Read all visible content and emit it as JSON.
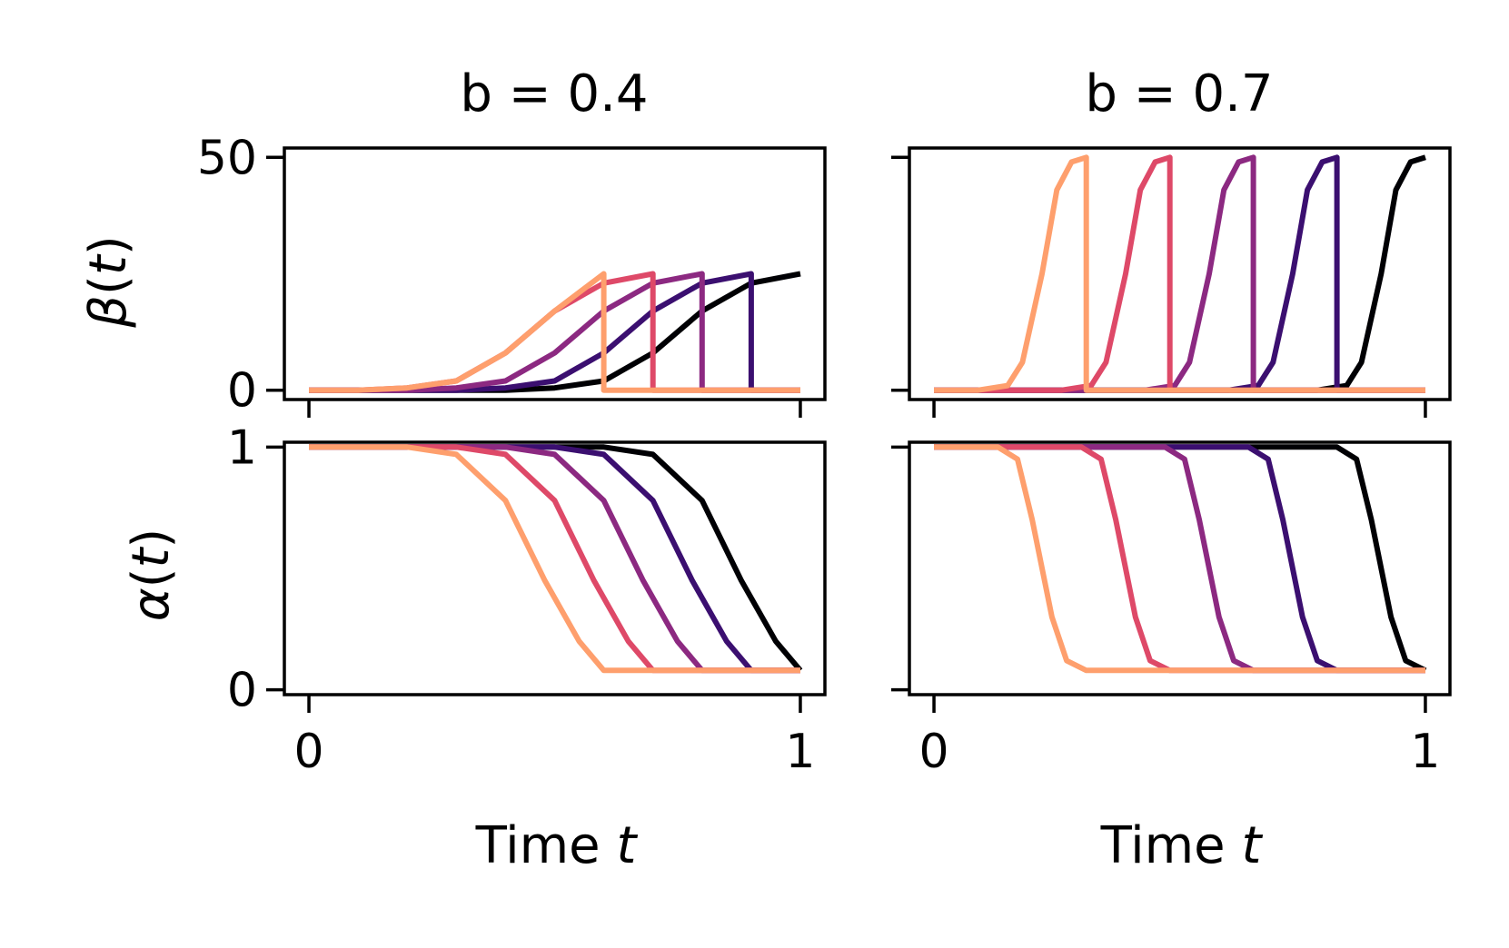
{
  "figure": {
    "column_titles": [
      "b = 0.4",
      "b = 0.7"
    ],
    "row_labels": {
      "beta": {
        "symbol": "β",
        "arg": "t",
        "text": "β(t)"
      },
      "alpha": {
        "symbol": "α",
        "arg": "t",
        "text": "α(t)"
      }
    },
    "xlabel": {
      "prefix": "Time ",
      "var": "t"
    }
  },
  "colors": [
    "#000004",
    "#3b0f70",
    "#8c2981",
    "#de4968",
    "#fe9f6d"
  ],
  "chart_data": [
    {
      "id": "beta-b04",
      "type": "line",
      "ylabel": "β(t)",
      "title": "b = 0.4",
      "ylim": [
        -2,
        52
      ],
      "xlim": [
        -0.05,
        1.05
      ],
      "yticks": [
        0,
        50
      ],
      "xticks": [
        0,
        1
      ],
      "ytick_labels": [
        "0",
        "50"
      ],
      "xtick_labels": [],
      "grid": false,
      "series": [
        {
          "x": [
            0,
            0.4,
            0.5,
            0.6,
            0.7,
            0.8,
            0.9,
            1.0
          ],
          "y": [
            0,
            0,
            0.5,
            2,
            8,
            17,
            23,
            25
          ]
        },
        {
          "x": [
            0,
            0.3,
            0.4,
            0.5,
            0.6,
            0.7,
            0.8,
            0.9,
            0.9,
            1.0
          ],
          "y": [
            0,
            0,
            0.5,
            2,
            8,
            17,
            23,
            25,
            0,
            0
          ]
        },
        {
          "x": [
            0,
            0.2,
            0.3,
            0.4,
            0.5,
            0.6,
            0.7,
            0.8,
            0.8,
            1.0
          ],
          "y": [
            0,
            0,
            0.5,
            2,
            8,
            17,
            23,
            25,
            0,
            0
          ]
        },
        {
          "x": [
            0,
            0.1,
            0.2,
            0.3,
            0.4,
            0.5,
            0.6,
            0.7,
            0.7,
            1.0
          ],
          "y": [
            0,
            0,
            0.5,
            2,
            8,
            17,
            23,
            25,
            0,
            0
          ]
        },
        {
          "x": [
            0,
            0.1,
            0.2,
            0.3,
            0.4,
            0.5,
            0.6,
            0.6,
            1.0
          ],
          "y": [
            0,
            0,
            0.5,
            2,
            8,
            17,
            25,
            0,
            0
          ]
        }
      ]
    },
    {
      "id": "beta-b07",
      "type": "line",
      "ylabel": "",
      "title": "b = 0.7",
      "ylim": [
        -2,
        52
      ],
      "xlim": [
        -0.05,
        1.05
      ],
      "yticks": [
        0,
        50
      ],
      "xticks": [
        0,
        1
      ],
      "ytick_labels": [],
      "xtick_labels": [],
      "grid": false,
      "series": [
        {
          "x": [
            0,
            0.78,
            0.84,
            0.87,
            0.91,
            0.94,
            0.97,
            1.0
          ],
          "y": [
            0,
            0,
            1,
            6,
            25,
            43,
            49,
            50
          ]
        },
        {
          "x": [
            0,
            0.6,
            0.66,
            0.69,
            0.73,
            0.76,
            0.79,
            0.82,
            0.82,
            1.0
          ],
          "y": [
            0,
            0,
            1,
            6,
            25,
            43,
            49,
            50,
            0,
            0
          ]
        },
        {
          "x": [
            0,
            0.43,
            0.49,
            0.52,
            0.56,
            0.59,
            0.62,
            0.65,
            0.65,
            1.0
          ],
          "y": [
            0,
            0,
            1,
            6,
            25,
            43,
            49,
            50,
            0,
            0
          ]
        },
        {
          "x": [
            0,
            0.26,
            0.32,
            0.35,
            0.39,
            0.42,
            0.45,
            0.48,
            0.48,
            1.0
          ],
          "y": [
            0,
            0,
            1,
            6,
            25,
            43,
            49,
            50,
            0,
            0
          ]
        },
        {
          "x": [
            0,
            0.09,
            0.15,
            0.18,
            0.22,
            0.25,
            0.28,
            0.31,
            0.31,
            1.0
          ],
          "y": [
            0,
            0,
            1,
            6,
            25,
            43,
            49,
            50,
            0,
            0
          ]
        }
      ]
    },
    {
      "id": "alpha-b04",
      "type": "line",
      "ylabel": "α(t)",
      "title": "",
      "ylim": [
        -0.02,
        1.02
      ],
      "xlim": [
        -0.05,
        1.05
      ],
      "yticks": [
        0,
        1
      ],
      "xticks": [
        0,
        1
      ],
      "ytick_labels": [
        "0",
        "1"
      ],
      "xtick_labels": [
        "0",
        "1"
      ],
      "grid": false,
      "series": [
        {
          "x": [
            0,
            0.6,
            0.7,
            0.8,
            0.88,
            0.95,
            1.0
          ],
          "y": [
            1,
            1,
            0.97,
            0.78,
            0.45,
            0.2,
            0.08
          ]
        },
        {
          "x": [
            0,
            0.5,
            0.6,
            0.7,
            0.78,
            0.85,
            0.9,
            1.0
          ],
          "y": [
            1,
            1,
            0.97,
            0.78,
            0.45,
            0.2,
            0.08,
            0.08
          ]
        },
        {
          "x": [
            0,
            0.4,
            0.5,
            0.6,
            0.68,
            0.75,
            0.8,
            1.0
          ],
          "y": [
            1,
            1,
            0.97,
            0.78,
            0.45,
            0.2,
            0.08,
            0.08
          ]
        },
        {
          "x": [
            0,
            0.3,
            0.4,
            0.5,
            0.58,
            0.65,
            0.7,
            1.0
          ],
          "y": [
            1,
            1,
            0.97,
            0.78,
            0.45,
            0.2,
            0.08,
            0.08
          ]
        },
        {
          "x": [
            0,
            0.2,
            0.3,
            0.4,
            0.48,
            0.55,
            0.6,
            1.0
          ],
          "y": [
            1,
            1,
            0.97,
            0.78,
            0.45,
            0.2,
            0.08,
            0.08
          ]
        }
      ]
    },
    {
      "id": "alpha-b07",
      "type": "line",
      "ylabel": "",
      "title": "",
      "ylim": [
        -0.02,
        1.02
      ],
      "xlim": [
        -0.05,
        1.05
      ],
      "yticks": [
        0,
        1
      ],
      "xticks": [
        0,
        1
      ],
      "ytick_labels": [],
      "xtick_labels": [
        "0",
        "1"
      ],
      "grid": false,
      "series": [
        {
          "x": [
            0,
            0.82,
            0.86,
            0.89,
            0.93,
            0.96,
            1.0
          ],
          "y": [
            1,
            1,
            0.95,
            0.7,
            0.3,
            0.12,
            0.08
          ]
        },
        {
          "x": [
            0,
            0.64,
            0.68,
            0.71,
            0.75,
            0.78,
            0.82,
            1.0
          ],
          "y": [
            1,
            1,
            0.95,
            0.7,
            0.3,
            0.12,
            0.08,
            0.08
          ]
        },
        {
          "x": [
            0,
            0.47,
            0.51,
            0.54,
            0.58,
            0.61,
            0.65,
            1.0
          ],
          "y": [
            1,
            1,
            0.95,
            0.7,
            0.3,
            0.12,
            0.08,
            0.08
          ]
        },
        {
          "x": [
            0,
            0.3,
            0.34,
            0.37,
            0.41,
            0.44,
            0.48,
            1.0
          ],
          "y": [
            1,
            1,
            0.95,
            0.7,
            0.3,
            0.12,
            0.08,
            0.08
          ]
        },
        {
          "x": [
            0,
            0.13,
            0.17,
            0.2,
            0.24,
            0.27,
            0.31,
            1.0
          ],
          "y": [
            1,
            1,
            0.95,
            0.7,
            0.3,
            0.12,
            0.08,
            0.08
          ]
        }
      ]
    }
  ]
}
